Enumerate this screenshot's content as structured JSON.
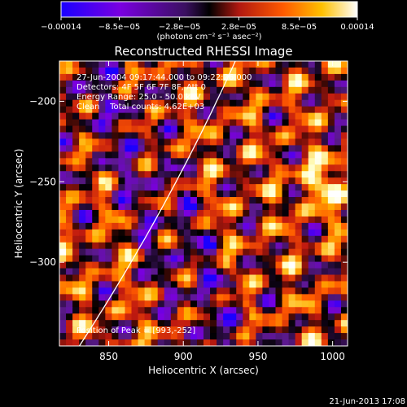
{
  "chart_data": {
    "type": "heatmap",
    "title": "Reconstructed RHESSI Image",
    "xlabel": "Heliocentric X (arcsec)",
    "ylabel": "Heliocentric Y (arcsec)",
    "xlim": [
      817,
      1010
    ],
    "ylim": [
      -352,
      -175
    ],
    "x_ticks": [
      850,
      900,
      950,
      1000
    ],
    "y_ticks": [
      -200,
      -250,
      -300
    ],
    "x_tick_labels": [
      "850",
      "900",
      "950",
      "1000"
    ],
    "y_tick_labels": [
      "−200",
      "−250",
      "−300"
    ],
    "colorbar": {
      "range": [
        -0.00014,
        0.00014
      ],
      "ticks": [
        -0.00014,
        -8.5e-05,
        -2.8e-05,
        2.8e-05,
        8.5e-05,
        0.00014
      ],
      "tick_labels": [
        "−0.00014",
        "−8.5e−05",
        "−2.8e−05",
        "2.8e−05",
        "8.5e−05",
        "0.00014"
      ],
      "unit_label": "(photons cm⁻² s⁻¹ asec⁻²)",
      "colormap": [
        "#1a00ff",
        "#7a00e0",
        "#5a1a8a",
        "#000000",
        "#c01a10",
        "#ff5a00",
        "#ffb000",
        "#ffffc0",
        "#ffffff"
      ]
    },
    "annotations": [
      "27-Jun-2004 09:17:44.000 to 09:22:26.000",
      "Detectors: 4F 5F 6F 7F 8F, Att 0",
      "Energy Range: 25.0 - 50.0 keV",
      "Clean    Total counts: 4.62E+03"
    ],
    "peak_label": "Position of Peak = [993,-252]",
    "peak": [
      993,
      -252
    ],
    "limb_color": "#ffffff"
  },
  "footer": {
    "timestamp": "21-Jun-2013 17:08"
  }
}
